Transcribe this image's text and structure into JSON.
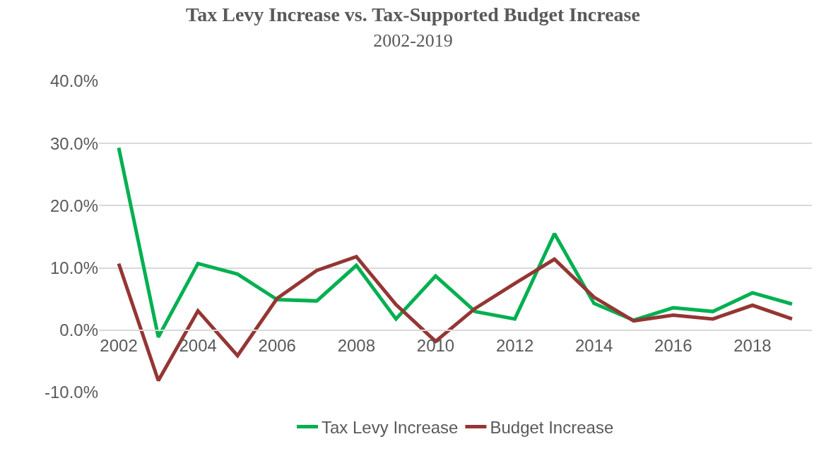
{
  "chart_data": {
    "type": "line",
    "title": "Tax Levy Increase vs. Tax-Supported Budget Increase",
    "subtitle": "2002-2019",
    "x": [
      2002,
      2003,
      2004,
      2005,
      2006,
      2007,
      2008,
      2009,
      2010,
      2011,
      2012,
      2013,
      2014,
      2015,
      2016,
      2017,
      2018,
      2019
    ],
    "series": [
      {
        "name": "Tax Levy Increase",
        "color": "#00b050",
        "values": [
          29.3,
          -1.1,
          10.7,
          9.0,
          4.9,
          4.7,
          10.4,
          1.8,
          8.7,
          3.0,
          1.8,
          15.5,
          4.3,
          1.6,
          3.6,
          3.0,
          6.0,
          4.2
        ]
      },
      {
        "name": "Budget Increase",
        "color": "#943634",
        "values": [
          10.7,
          -8.1,
          3.1,
          -4.1,
          5.1,
          9.6,
          11.8,
          4.1,
          -1.8,
          3.5,
          7.5,
          11.4,
          5.3,
          1.5,
          2.4,
          1.8,
          4.0,
          1.8
        ]
      }
    ],
    "xlim": [
      2001.5,
      2019.5
    ],
    "xticks": [
      2002,
      2004,
      2006,
      2008,
      2010,
      2012,
      2014,
      2016,
      2018
    ],
    "ylim": [
      -10,
      40
    ],
    "yticks": [
      {
        "value": -10,
        "label": "-10.0%"
      },
      {
        "value": 0,
        "label": "0.0%"
      },
      {
        "value": 10,
        "label": "10.0%"
      },
      {
        "value": 20,
        "label": "20.0%"
      },
      {
        "value": 30,
        "label": "30.0%"
      },
      {
        "value": 40,
        "label": "40.0%"
      }
    ],
    "grid": "y",
    "legend": "bottom",
    "marker": "none",
    "line_style": "solid"
  }
}
